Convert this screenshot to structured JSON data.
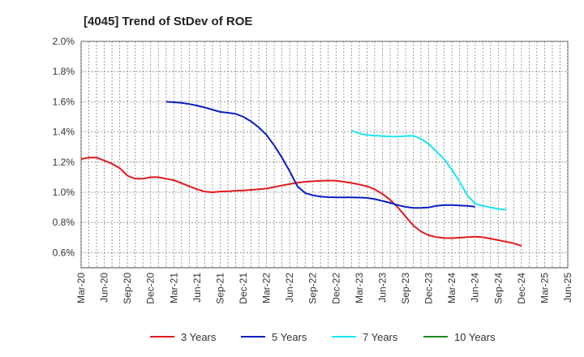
{
  "chart_data": {
    "type": "line",
    "title": "[4045]  Trend of StDev of ROE",
    "xlabel": "",
    "ylabel": "",
    "ylim": [
      0.5,
      2.0
    ],
    "yticks": [
      0.6,
      0.8,
      1.0,
      1.2,
      1.4,
      1.6,
      1.8,
      2.0
    ],
    "ytick_labels": [
      "0.6%",
      "0.8%",
      "1.0%",
      "1.2%",
      "1.4%",
      "1.6%",
      "1.8%",
      "2.0%"
    ],
    "x_tick_labels": [
      "Mar-20",
      "Jun-20",
      "Sep-20",
      "Dec-20",
      "Mar-21",
      "Jun-21",
      "Sep-21",
      "Dec-21",
      "Mar-22",
      "Jun-22",
      "Sep-22",
      "Dec-22",
      "Mar-23",
      "Jun-23",
      "Sep-23",
      "Dec-23",
      "Mar-24",
      "Jun-24",
      "Sep-24",
      "Dec-24",
      "Mar-25",
      "Jun-25"
    ],
    "grid": true,
    "legend_position": "bottom",
    "series": [
      {
        "name": "3 Years",
        "color": "#e31a1c",
        "start_index": 0,
        "values": [
          1.22,
          1.23,
          1.23,
          1.21,
          1.19,
          1.16,
          1.11,
          1.09,
          1.09,
          1.1,
          1.1,
          1.09,
          1.08,
          1.06,
          1.04,
          1.02,
          1.005,
          1.0,
          1.005,
          1.007,
          1.01,
          1.012,
          1.016,
          1.02,
          1.025,
          1.035,
          1.045,
          1.055,
          1.063,
          1.07,
          1.073,
          1.076,
          1.078,
          1.077,
          1.07,
          1.062,
          1.052,
          1.04,
          1.02,
          0.99,
          0.95,
          0.9,
          0.84,
          0.78,
          0.74,
          0.715,
          0.703,
          0.697,
          0.696,
          0.699,
          0.703,
          0.706,
          0.702,
          0.693,
          0.683,
          0.673,
          0.662,
          0.645
        ]
      },
      {
        "name": "5 Years",
        "color": "#0a1fbf",
        "start_index": 11,
        "values": [
          1.6,
          1.597,
          1.593,
          1.585,
          1.575,
          1.562,
          1.548,
          1.533,
          1.527,
          1.52,
          1.5,
          1.47,
          1.43,
          1.38,
          1.31,
          1.23,
          1.14,
          1.04,
          0.995,
          0.98,
          0.972,
          0.968,
          0.966,
          0.966,
          0.966,
          0.965,
          0.963,
          0.955,
          0.943,
          0.93,
          0.915,
          0.903,
          0.897,
          0.897,
          0.9,
          0.91,
          0.915,
          0.915,
          0.913,
          0.91,
          0.905
        ]
      },
      {
        "name": "7 Years",
        "color": "#19e6ee",
        "start_index": 35,
        "values": [
          1.41,
          1.39,
          1.38,
          1.376,
          1.373,
          1.37,
          1.369,
          1.373,
          1.375,
          1.355,
          1.32,
          1.27,
          1.22,
          1.15,
          1.07,
          0.98,
          0.925,
          0.91,
          0.9,
          0.89,
          0.885
        ]
      },
      {
        "name": "10 Years",
        "color": "#1a8c1a",
        "start_index": 0,
        "values": []
      }
    ]
  }
}
